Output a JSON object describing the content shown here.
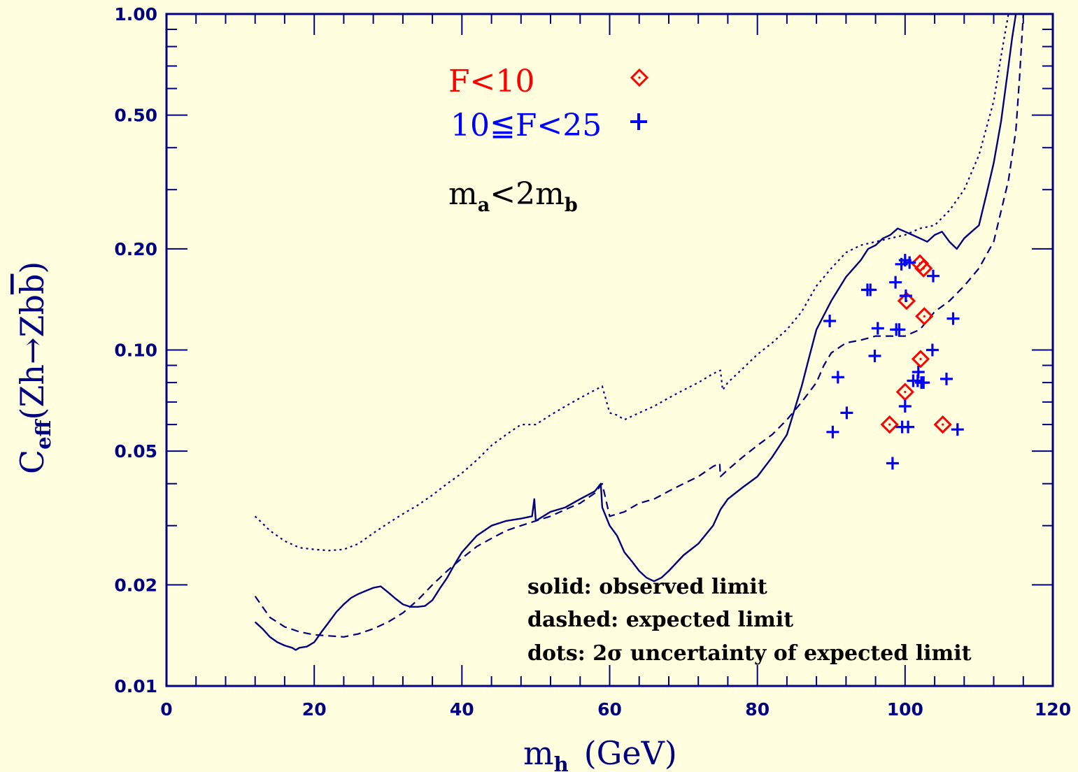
{
  "chart_data": {
    "type": "line",
    "xlabel": "m",
    "xlabel_sub": "h",
    "xlabel_unit": "(GeV)",
    "ylabel": {
      "c": "C",
      "sub": "eff",
      "open": "(",
      "text": "Zh→Zb",
      "bbar": "b",
      "close": ")"
    },
    "xlim": [
      0,
      120
    ],
    "ylim": [
      0.01,
      1.0
    ],
    "yscale": "log",
    "grid": false,
    "x_ticks": [
      0,
      20,
      40,
      60,
      80,
      100,
      120
    ],
    "x_tick_labels": [
      "0",
      "20",
      "40",
      "60",
      "80",
      "100",
      "120"
    ],
    "y_ticks": [
      0.01,
      0.02,
      0.05,
      0.1,
      0.2,
      0.5,
      1.0
    ],
    "y_tick_labels": [
      "0.01",
      "0.02",
      "0.05",
      "0.10",
      "0.20",
      "0.50",
      "1.00"
    ],
    "colors": {
      "background": "#ffffe0",
      "axis": "#000080",
      "curves": "#000080",
      "f_lt_10": "#ff0000",
      "f_10_25": "#0000ff",
      "text": "#000000"
    },
    "legend": {
      "placement": "top-left",
      "f_lt_10": "F<10",
      "f_10_25": "10≦F<25",
      "condition": {
        "m": "m",
        "a": "a",
        "lt2": "<2",
        "b": "b"
      }
    },
    "notes": [
      "solid: observed limit",
      "dashed: expected limit",
      "dots: 2σ uncertainty of expected limit"
    ],
    "series": [
      {
        "style": "solid",
        "x": [
          12,
          13,
          14,
          15,
          16,
          17,
          17.5,
          18,
          19,
          20,
          21,
          22,
          23,
          24,
          25,
          26,
          27,
          28,
          29,
          30,
          31,
          32,
          33,
          34,
          35,
          36,
          37,
          38,
          39,
          40,
          42,
          44,
          46,
          48,
          49.5,
          49.8,
          50,
          52,
          54,
          56,
          58,
          58.8,
          59,
          60,
          61,
          62,
          63,
          64,
          65,
          66,
          67,
          68,
          70,
          72,
          74,
          75,
          76,
          78,
          80,
          82,
          84,
          86,
          87,
          88,
          90,
          92,
          94,
          95,
          96,
          97,
          98,
          99,
          100,
          101,
          102,
          103,
          104,
          105,
          106,
          107,
          108,
          109,
          110,
          111,
          112,
          113,
          114,
          114.5,
          115
        ],
        "y": [
          0.0155,
          0.0148,
          0.014,
          0.0135,
          0.0132,
          0.013,
          0.0128,
          0.013,
          0.0131,
          0.0135,
          0.0145,
          0.0155,
          0.0166,
          0.0175,
          0.0183,
          0.0188,
          0.0192,
          0.0196,
          0.0198,
          0.019,
          0.0182,
          0.0175,
          0.0172,
          0.0172,
          0.0173,
          0.018,
          0.0195,
          0.021,
          0.023,
          0.025,
          0.028,
          0.03,
          0.031,
          0.0315,
          0.032,
          0.036,
          0.031,
          0.033,
          0.034,
          0.036,
          0.038,
          0.04,
          0.034,
          0.03,
          0.028,
          0.025,
          0.0235,
          0.022,
          0.021,
          0.0205,
          0.021,
          0.022,
          0.0245,
          0.0265,
          0.03,
          0.0335,
          0.036,
          0.039,
          0.042,
          0.048,
          0.056,
          0.078,
          0.095,
          0.115,
          0.14,
          0.165,
          0.185,
          0.2,
          0.205,
          0.215,
          0.22,
          0.23,
          0.225,
          0.22,
          0.215,
          0.21,
          0.22,
          0.225,
          0.21,
          0.2,
          0.215,
          0.225,
          0.235,
          0.29,
          0.36,
          0.48,
          0.7,
          0.85,
          1.0
        ]
      },
      {
        "style": "dashed",
        "x": [
          12,
          14,
          16,
          18,
          20,
          22,
          24,
          26,
          28,
          30,
          32,
          34,
          36,
          38,
          40,
          42,
          44,
          46,
          48,
          50,
          52,
          54,
          56,
          58,
          59,
          60,
          62,
          64,
          66,
          68,
          70,
          72,
          74,
          74.9,
          75,
          76,
          78,
          80,
          82,
          84,
          86,
          88,
          89,
          90,
          92,
          94,
          96,
          98,
          100,
          102,
          104,
          106,
          108,
          110,
          112,
          114,
          115,
          115.5,
          116
        ],
        "y": [
          0.0185,
          0.016,
          0.015,
          0.0145,
          0.0142,
          0.0141,
          0.014,
          0.0143,
          0.0148,
          0.0155,
          0.0165,
          0.018,
          0.02,
          0.022,
          0.024,
          0.026,
          0.0275,
          0.029,
          0.03,
          0.031,
          0.032,
          0.0335,
          0.035,
          0.0375,
          0.04,
          0.032,
          0.033,
          0.035,
          0.036,
          0.038,
          0.04,
          0.042,
          0.045,
          0.046,
          0.042,
          0.044,
          0.048,
          0.052,
          0.056,
          0.062,
          0.07,
          0.08,
          0.09,
          0.098,
          0.105,
          0.107,
          0.11,
          0.11,
          0.11,
          0.115,
          0.13,
          0.14,
          0.155,
          0.175,
          0.21,
          0.32,
          0.45,
          0.65,
          1.0
        ]
      },
      {
        "style": "dotted",
        "x": [
          12,
          14,
          16,
          18,
          20,
          22,
          24,
          26,
          28,
          30,
          32,
          34,
          36,
          38,
          40,
          42,
          44,
          46,
          48,
          50,
          52,
          54,
          56,
          58,
          59,
          60,
          61,
          62,
          64,
          66,
          68,
          70,
          72,
          74,
          75,
          75.3,
          76,
          78,
          80,
          82,
          84,
          86,
          88,
          90,
          92,
          94,
          96,
          98,
          100,
          102,
          104,
          106,
          108,
          110,
          112,
          113,
          113.5,
          114
        ],
        "y": [
          0.032,
          0.029,
          0.027,
          0.0258,
          0.0255,
          0.0253,
          0.0255,
          0.0265,
          0.0285,
          0.0305,
          0.0325,
          0.0345,
          0.037,
          0.04,
          0.043,
          0.047,
          0.052,
          0.056,
          0.06,
          0.06,
          0.064,
          0.068,
          0.072,
          0.076,
          0.078,
          0.065,
          0.064,
          0.062,
          0.065,
          0.068,
          0.072,
          0.076,
          0.08,
          0.085,
          0.087,
          0.076,
          0.08,
          0.088,
          0.097,
          0.105,
          0.115,
          0.13,
          0.155,
          0.175,
          0.195,
          0.205,
          0.21,
          0.215,
          0.22,
          0.23,
          0.235,
          0.26,
          0.3,
          0.38,
          0.55,
          0.75,
          0.87,
          1.0
        ]
      }
    ],
    "points_f_lt_10": [
      {
        "x": 102.0,
        "y": 0.181
      },
      {
        "x": 102.5,
        "y": 0.175
      },
      {
        "x": 100.2,
        "y": 0.14
      },
      {
        "x": 102.6,
        "y": 0.126
      },
      {
        "x": 102.1,
        "y": 0.094
      },
      {
        "x": 100.0,
        "y": 0.075
      },
      {
        "x": 97.9,
        "y": 0.06
      },
      {
        "x": 105.1,
        "y": 0.06
      },
      {
        "x": 64.0,
        "y": 0.65
      }
    ],
    "points_f_10_25": [
      {
        "x": 89.8,
        "y": 0.122
      },
      {
        "x": 90.9,
        "y": 0.083
      },
      {
        "x": 90.2,
        "y": 0.057
      },
      {
        "x": 92.1,
        "y": 0.065
      },
      {
        "x": 94.9,
        "y": 0.151
      },
      {
        "x": 95.3,
        "y": 0.151
      },
      {
        "x": 95.9,
        "y": 0.096
      },
      {
        "x": 96.3,
        "y": 0.116
      },
      {
        "x": 98.7,
        "y": 0.159
      },
      {
        "x": 98.8,
        "y": 0.115
      },
      {
        "x": 99.5,
        "y": 0.18
      },
      {
        "x": 100.0,
        "y": 0.185
      },
      {
        "x": 100.6,
        "y": 0.182
      },
      {
        "x": 100.1,
        "y": 0.145
      },
      {
        "x": 98.3,
        "y": 0.046
      },
      {
        "x": 99.6,
        "y": 0.059
      },
      {
        "x": 100.4,
        "y": 0.059
      },
      {
        "x": 100.0,
        "y": 0.068
      },
      {
        "x": 101.1,
        "y": 0.081
      },
      {
        "x": 101.7,
        "y": 0.081
      },
      {
        "x": 102.2,
        "y": 0.08
      },
      {
        "x": 102.5,
        "y": 0.08
      },
      {
        "x": 101.8,
        "y": 0.086
      },
      {
        "x": 103.7,
        "y": 0.1
      },
      {
        "x": 103.8,
        "y": 0.166
      },
      {
        "x": 105.6,
        "y": 0.082
      },
      {
        "x": 106.5,
        "y": 0.124
      },
      {
        "x": 107.1,
        "y": 0.058
      },
      {
        "x": 99.2,
        "y": 0.115
      },
      {
        "x": 64.0,
        "y": 0.455
      }
    ]
  }
}
